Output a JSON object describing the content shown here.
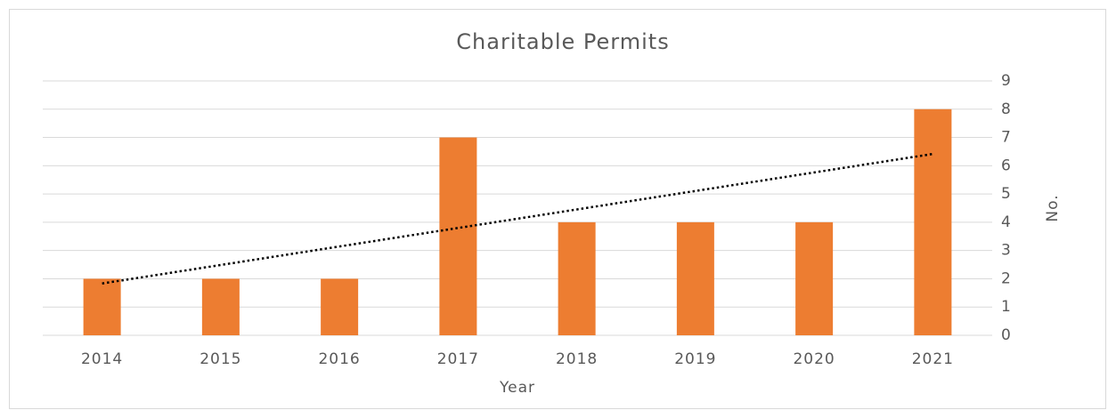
{
  "chart_data": {
    "type": "bar",
    "title": "Charitable Permits",
    "x_label": "Year",
    "y_label": "No.",
    "categories": [
      "2014",
      "2015",
      "2016",
      "2017",
      "2018",
      "2019",
      "2020",
      "2021"
    ],
    "values": [
      2,
      2,
      2,
      7,
      4,
      4,
      4,
      8
    ],
    "color": "#ed7d31",
    "ylim": [
      0,
      9
    ],
    "yticks": [
      0,
      1,
      2,
      3,
      4,
      5,
      6,
      7,
      8,
      9
    ],
    "grid": true,
    "y_axis_side": "right",
    "trendline": "linear"
  }
}
